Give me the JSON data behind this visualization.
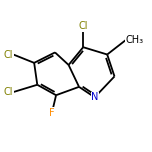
{
  "background_color": "#ffffff",
  "bond_color": "#000000",
  "atom_colors": {
    "N": "#0000cd",
    "Cl": "#808000",
    "F": "#ff8c00",
    "C": "#000000"
  },
  "bond_lw": 1.3,
  "font_size": 7.0,
  "figsize": [
    1.52,
    1.52
  ],
  "dpi": 100,
  "xlim": [
    -3.0,
    3.2
  ],
  "ylim": [
    -2.4,
    2.0
  ]
}
